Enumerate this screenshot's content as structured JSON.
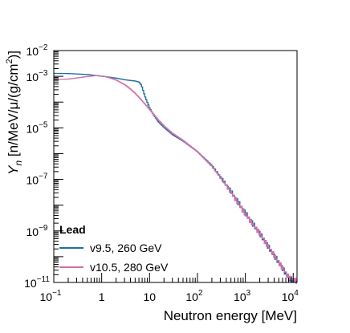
{
  "chart_data": {
    "type": "line",
    "title": "",
    "xlabel": "Neutron energy [MeV]",
    "ylabel": "Y_n [n/MeV/μ/(g/cm²)]",
    "xscale": "log",
    "yscale": "log",
    "xlim": [
      0.1,
      12000
    ],
    "ylim": [
      1e-11,
      0.01
    ],
    "x_ticks": [
      {
        "value": 0.1,
        "base": "10",
        "exp": "−1"
      },
      {
        "value": 1,
        "base": "1",
        "exp": ""
      },
      {
        "value": 10,
        "base": "10",
        "exp": ""
      },
      {
        "value": 100,
        "base": "10",
        "exp": "2"
      },
      {
        "value": 1000,
        "base": "10",
        "exp": "3"
      },
      {
        "value": 10000,
        "base": "10",
        "exp": "4"
      }
    ],
    "y_ticks": [
      {
        "value": 1e-11,
        "base": "10",
        "exp": "−11"
      },
      {
        "value": 1e-09,
        "base": "10",
        "exp": "−9"
      },
      {
        "value": 1e-07,
        "base": "10",
        "exp": "−7"
      },
      {
        "value": 1e-05,
        "base": "10",
        "exp": "−5"
      },
      {
        "value": 0.001,
        "base": "10",
        "exp": "−3"
      },
      {
        "value": 0.01,
        "base": "10",
        "exp": "−2"
      }
    ],
    "grid": false,
    "legend": {
      "placement": "bottom-left",
      "title": "Lead"
    },
    "series": [
      {
        "name": "v9.5, 260 GeV",
        "color": "#1f6f9f",
        "x": [
          0.1,
          0.2,
          0.5,
          0.8,
          1.2,
          2,
          3,
          4,
          5,
          6,
          6.5,
          7,
          8,
          10,
          12,
          15,
          20,
          30,
          50,
          100,
          200,
          300,
          500,
          1000,
          2000,
          3000,
          5000,
          8000,
          12000
        ],
        "y": [
          0.0013,
          0.00128,
          0.00118,
          0.00106,
          0.00097,
          0.00085,
          0.00074,
          0.00069,
          0.00066,
          0.0006,
          0.00052,
          0.00038,
          0.00017,
          6e-05,
          3.3e-05,
          1.8e-05,
          1.05e-05,
          5.5e-06,
          3.1e-06,
          1.2e-06,
          3.5e-07,
          1.3e-07,
          3.5e-08,
          5e-09,
          8e-10,
          2.5e-10,
          6e-11,
          1.5e-11,
          1e-11
        ]
      },
      {
        "name": "v10.5, 280 GeV",
        "color": "#d070a8",
        "x": [
          0.1,
          0.2,
          0.5,
          0.8,
          1.2,
          2,
          3,
          4,
          5,
          6,
          8,
          10,
          12,
          15,
          20,
          30,
          50,
          100,
          200,
          300,
          500,
          1000,
          2000,
          3000,
          5000,
          8000,
          12000
        ],
        "y": [
          0.00075,
          0.00078,
          0.00098,
          0.00108,
          0.00098,
          0.00072,
          0.00048,
          0.00032,
          0.00022,
          0.000155,
          8.5e-05,
          5.2e-05,
          3.5e-05,
          2.1e-05,
          1.2e-05,
          6.2e-06,
          3.3e-06,
          1.2e-06,
          3.2e-07,
          1.2e-07,
          3.2e-08,
          4.5e-09,
          8e-10,
          2.5e-10,
          6e-11,
          1.6e-11,
          1.1e-11
        ]
      }
    ]
  }
}
